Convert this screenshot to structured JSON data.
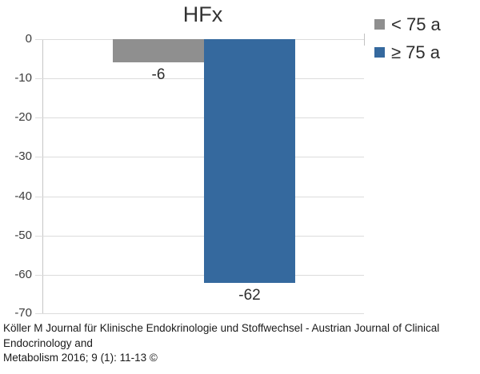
{
  "chart_data": {
    "type": "bar",
    "title": "HFx",
    "orientation": "vertical",
    "categories": [
      "HFx"
    ],
    "series": [
      {
        "name": "< 75 a",
        "value": -6,
        "value_label": "-6",
        "color": "#8f8f8f"
      },
      {
        "name": "≥ 75 a",
        "value": -62,
        "value_label": "-62",
        "color": "#35699e"
      }
    ],
    "ylim": [
      -70,
      0
    ],
    "yticks": [
      0,
      -10,
      -20,
      -30,
      -40,
      -50,
      -60,
      -70
    ],
    "ytick_labels": [
      "0",
      "-10",
      "-20",
      "-30",
      "-40",
      "-50",
      "-60",
      "-70"
    ],
    "grid": "horizontal",
    "legend_position": "top-right",
    "gridline_color": "#dcdcdc",
    "axis_color": "#c6c6c6",
    "text_color": "#2d2d2d"
  },
  "citation": {
    "line1": "Köller M Journal für Klinische Endokrinologie und Stoffwechsel - Austrian Journal of Clinical Endocrinology and",
    "line2": "Metabolism 2016; 9 (1): 11-13 ©"
  }
}
